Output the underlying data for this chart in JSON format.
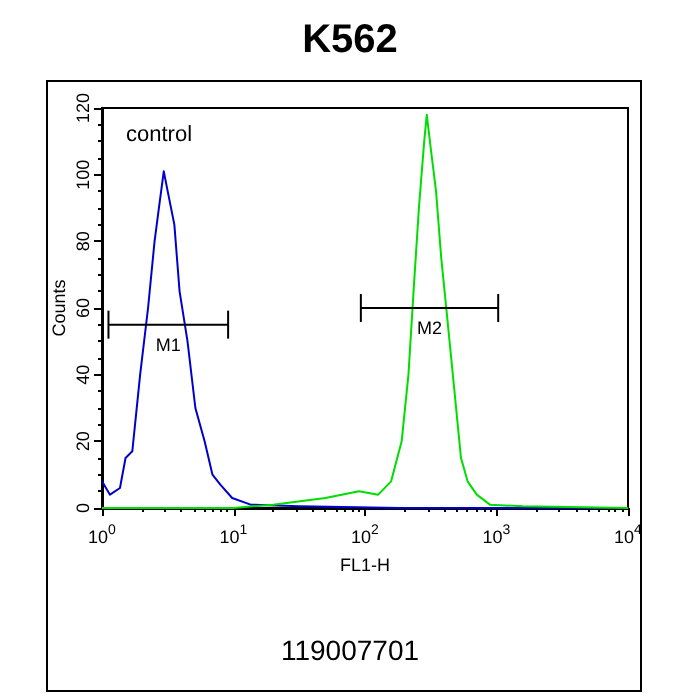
{
  "chart_data": {
    "type": "line",
    "title": "K562",
    "xlabel": "FL1-H",
    "ylabel": "Counts",
    "log": "x",
    "grid": false,
    "legend": false,
    "marker": "none",
    "line_style": "solid",
    "xlim": [
      1,
      10000
    ],
    "xticks": [
      {
        "value": 1,
        "label": "10$^{0}$"
      },
      {
        "value": 10,
        "label": "10$^{1}$"
      },
      {
        "value": 100,
        "label": "10$^{2}$"
      },
      {
        "value": 1000,
        "label": "10$^{3}$"
      },
      {
        "value": 10000,
        "label": "10$^{4}$"
      }
    ],
    "ylim": [
      0,
      120
    ],
    "yticks": [
      0,
      20,
      40,
      60,
      80,
      100,
      120
    ],
    "annotations": [
      "control",
      "119007701"
    ],
    "series": [
      {
        "color": "#0000cc",
        "x": [
          1,
          1.15,
          1.37,
          1.51,
          1.7,
          1.95,
          2.24,
          2.51,
          2.75,
          2.95,
          3.16,
          3.55,
          3.89,
          4.47,
          5.13,
          6.03,
          6.92,
          7.94,
          9.77,
          13.5,
          31.6,
          186,
          10000
        ],
        "values": [
          8,
          4,
          6,
          15,
          17,
          40,
          60,
          80,
          92,
          101,
          95,
          85,
          65,
          50,
          30,
          20,
          10,
          7,
          3,
          1,
          0.5,
          0,
          0
        ]
      },
      {
        "color": "#00dd00",
        "x": [
          1,
          10,
          20,
          50,
          90,
          126,
          158,
          190,
          214,
          234,
          257,
          282,
          295,
          316,
          347,
          380,
          427,
          479,
          537,
          603,
          708,
          891,
          1585,
          10000
        ],
        "values": [
          0,
          0,
          1,
          3,
          5,
          4,
          8,
          20,
          40,
          65,
          90,
          110,
          118,
          108,
          95,
          75,
          55,
          35,
          15,
          8,
          4,
          1,
          0.5,
          0
        ]
      },
      {
        "name": "M1",
        "color": "#000000",
        "x": [
          1.12,
          9.1
        ],
        "values": [
          55,
          55
        ]
      },
      {
        "name": "M2",
        "color": "#000000",
        "x": [
          93,
          1030
        ],
        "values": [
          60,
          60
        ]
      }
    ]
  }
}
